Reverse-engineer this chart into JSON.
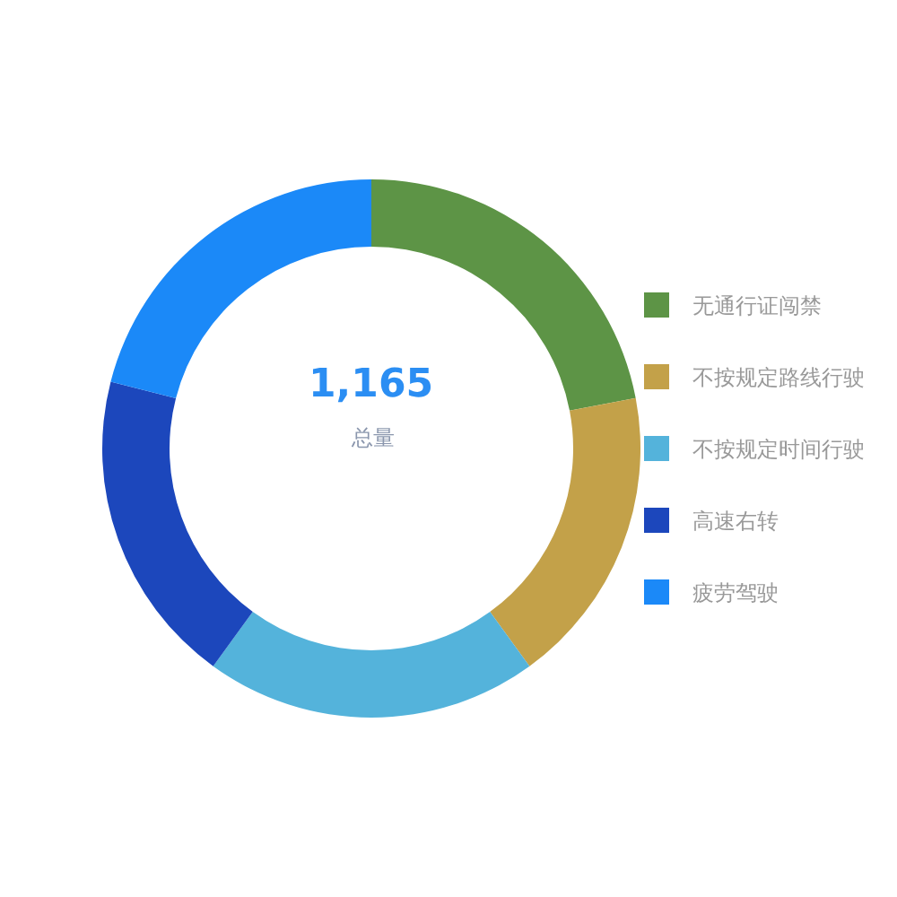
{
  "chart_data": {
    "type": "donut",
    "categories": [
      "无通行证闯禁",
      "不按规定路线行驶",
      "不按规定时间行驶",
      "高速右转",
      "疲劳驾驶"
    ],
    "values": [
      22,
      18,
      20,
      19,
      21
    ],
    "colors": [
      "#5d9446",
      "#c3a149",
      "#54b3db",
      "#1c47bc",
      "#1b89f8"
    ],
    "annotations": [
      "1,165",
      "总量"
    ],
    "legend": "right"
  }
}
